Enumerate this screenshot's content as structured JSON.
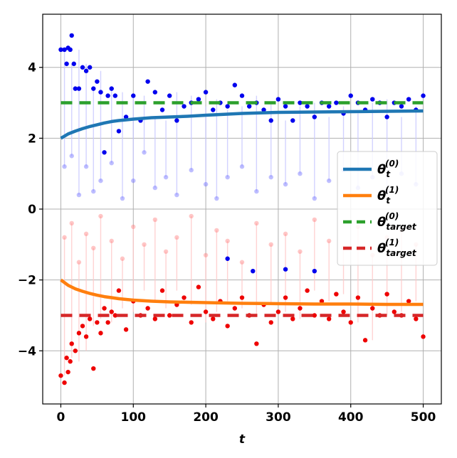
{
  "chart_data": {
    "type": "line",
    "title": "",
    "xlabel": "t",
    "ylabel": "",
    "xlim": [
      -25,
      525
    ],
    "ylim": [
      -5.5,
      5.5
    ],
    "xticks": [
      0,
      100,
      200,
      300,
      400,
      500
    ],
    "yticks": [
      -4,
      -2,
      0,
      2,
      4
    ],
    "xtick_labels": [
      "0",
      "100",
      "200",
      "300",
      "400",
      "500"
    ],
    "ytick_labels": [
      "−4",
      "−2",
      "0",
      "2",
      "4"
    ],
    "grid": true,
    "legend_placement": "center-right",
    "series": [
      {
        "name": "θ_t^(0)",
        "label_main": "θ",
        "label_sub": "t",
        "label_sup": "(0)",
        "style": "solid",
        "color": "#1f77b4",
        "x": [
          0,
          10,
          20,
          30,
          40,
          50,
          60,
          70,
          80,
          90,
          100,
          125,
          150,
          175,
          200,
          250,
          300,
          350,
          400,
          450,
          500
        ],
        "y": [
          2.0,
          2.12,
          2.2,
          2.27,
          2.33,
          2.38,
          2.43,
          2.47,
          2.5,
          2.52,
          2.54,
          2.58,
          2.6,
          2.62,
          2.65,
          2.7,
          2.73,
          2.74,
          2.75,
          2.76,
          2.77
        ]
      },
      {
        "name": "θ_t^(1)",
        "label_main": "θ",
        "label_sub": "t",
        "label_sup": "(1)",
        "style": "solid",
        "color": "#ff7f0e",
        "x": [
          0,
          10,
          20,
          30,
          40,
          50,
          60,
          70,
          80,
          90,
          100,
          125,
          150,
          175,
          200,
          250,
          300,
          350,
          400,
          450,
          500
        ],
        "y": [
          -2.0,
          -2.15,
          -2.25,
          -2.32,
          -2.38,
          -2.43,
          -2.47,
          -2.5,
          -2.53,
          -2.55,
          -2.57,
          -2.6,
          -2.62,
          -2.63,
          -2.64,
          -2.66,
          -2.67,
          -2.68,
          -2.68,
          -2.69,
          -2.69
        ]
      },
      {
        "name": "θ_target^(0)",
        "label_main": "θ",
        "label_sub": "target",
        "label_sup": "(0)",
        "style": "dashed",
        "color": "#2ca02c",
        "x": [
          0,
          500
        ],
        "y": [
          3.0,
          3.0
        ]
      },
      {
        "name": "θ_target^(1)",
        "label_main": "θ",
        "label_sub": "target",
        "label_sup": "(1)",
        "style": "dashed",
        "color": "#d62728",
        "x": [
          0,
          500
        ],
        "y": [
          -3.0,
          -3.0
        ]
      }
    ],
    "scatter": [
      {
        "color": "#0000ee",
        "faint_color": "#6f6fff",
        "line_color": "#c8c8ff",
        "x": [
          0,
          5,
          8,
          10,
          13,
          15,
          18,
          20,
          25,
          30,
          35,
          40,
          45,
          50,
          55,
          60,
          65,
          70,
          75,
          80,
          90,
          100,
          110,
          120,
          130,
          140,
          150,
          160,
          170,
          180,
          190,
          200,
          210,
          220,
          230,
          240,
          250,
          260,
          270,
          280,
          290,
          300,
          310,
          320,
          330,
          340,
          350,
          360,
          370,
          380,
          390,
          400,
          410,
          420,
          430,
          440,
          450,
          460,
          470,
          480,
          490,
          500
        ],
        "y": [
          4.5,
          4.5,
          4.1,
          4.55,
          4.5,
          4.9,
          4.1,
          3.4,
          3.4,
          4.0,
          3.9,
          4.0,
          3.4,
          3.6,
          3.3,
          1.6,
          3.2,
          3.4,
          3.2,
          2.2,
          2.6,
          3.2,
          2.5,
          3.6,
          3.3,
          2.8,
          3.2,
          2.5,
          2.9,
          3.0,
          3.1,
          3.3,
          2.8,
          3.0,
          2.9,
          3.5,
          3.2,
          2.9,
          3.0,
          2.8,
          2.5,
          3.1,
          2.9,
          2.5,
          3.0,
          2.9,
          2.6,
          3.0,
          2.9,
          3.0,
          2.7,
          3.2,
          3.0,
          2.8,
          3.1,
          3.0,
          2.6,
          3.0,
          2.9,
          3.1,
          2.8,
          3.2
        ],
        "faint_x": [
          5,
          15,
          25,
          35,
          45,
          55,
          70,
          85,
          100,
          115,
          130,
          145,
          160,
          180,
          200,
          215,
          230,
          250,
          270,
          290,
          310,
          330,
          350,
          370,
          390,
          410,
          430,
          450,
          470,
          490
        ],
        "faint_y": [
          1.2,
          1.5,
          0.4,
          1.2,
          0.5,
          0.8,
          1.3,
          0.3,
          0.8,
          1.6,
          0.6,
          0.9,
          0.4,
          1.1,
          0.7,
          0.3,
          0.9,
          1.2,
          0.5,
          0.9,
          0.7,
          1.0,
          0.3,
          0.8,
          1.1,
          0.6,
          0.9,
          0.5,
          1.0,
          0.7
        ]
      },
      {
        "color": "#ee0000",
        "faint_color": "#ff8080",
        "line_color": "#ffc8c8",
        "x": [
          0,
          5,
          8,
          10,
          13,
          15,
          20,
          25,
          30,
          35,
          40,
          45,
          50,
          55,
          60,
          65,
          70,
          75,
          80,
          90,
          100,
          110,
          120,
          130,
          140,
          150,
          160,
          170,
          180,
          190,
          200,
          210,
          220,
          230,
          240,
          250,
          260,
          270,
          280,
          290,
          300,
          310,
          320,
          330,
          340,
          350,
          360,
          370,
          380,
          390,
          400,
          410,
          420,
          430,
          440,
          450,
          460,
          470,
          480,
          490,
          500
        ],
        "y": [
          -4.7,
          -4.9,
          -4.2,
          -4.6,
          -4.3,
          -3.8,
          -4.0,
          -3.5,
          -3.3,
          -3.6,
          -3.1,
          -4.5,
          -3.2,
          -3.5,
          -2.8,
          -3.2,
          -2.9,
          -3.0,
          -2.3,
          -3.4,
          -2.6,
          -3.0,
          -2.8,
          -3.1,
          -2.3,
          -3.0,
          -2.7,
          -2.5,
          -3.2,
          -2.2,
          -2.9,
          -3.1,
          -2.6,
          -3.3,
          -2.8,
          -2.5,
          -3.0,
          -3.8,
          -2.7,
          -3.2,
          -2.9,
          -2.5,
          -3.1,
          -2.8,
          -2.3,
          -3.0,
          -2.6,
          -3.1,
          -2.4,
          -2.9,
          -3.2,
          -2.5,
          -3.7,
          -2.8,
          -3.0,
          -2.4,
          -2.9,
          -3.0,
          -2.6,
          -3.1,
          -3.6
        ],
        "faint_x": [
          5,
          15,
          25,
          35,
          45,
          55,
          70,
          85,
          100,
          115,
          130,
          145,
          160,
          180,
          200,
          215,
          230,
          250,
          270,
          290,
          310,
          330,
          350,
          370,
          390,
          410,
          430,
          450,
          470,
          490
        ],
        "faint_y": [
          -0.8,
          -0.4,
          -1.5,
          -0.7,
          -1.1,
          -0.2,
          -0.9,
          -1.4,
          -0.5,
          -1.0,
          -0.3,
          -1.2,
          -0.8,
          -0.2,
          -1.3,
          -0.6,
          -0.9,
          -1.5,
          -0.4,
          -1.0,
          -0.7,
          -1.2,
          -0.3,
          -0.9,
          -1.1,
          -0.5,
          -1.3,
          -0.8,
          -0.6,
          -1.0
        ]
      },
      {
        "color": "#0000ee",
        "faint_color": "#6f6fff",
        "line_color": "#c8c8ff",
        "x": [
          230,
          265,
          310,
          350
        ],
        "y": [
          -1.4,
          -1.75,
          -1.7,
          -1.75
        ],
        "faint_x": [],
        "faint_y": []
      }
    ]
  }
}
